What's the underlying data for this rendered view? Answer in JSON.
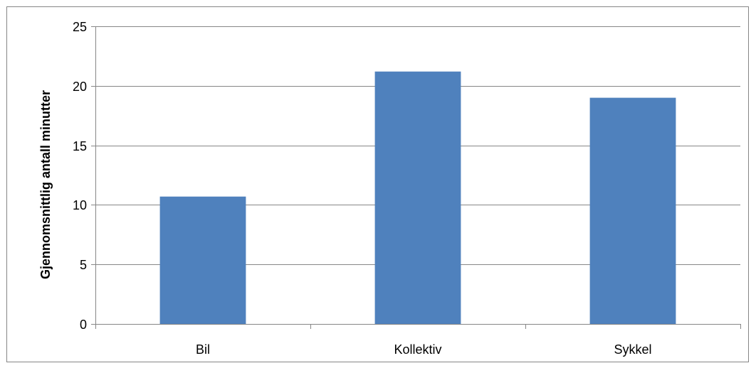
{
  "chart_data": {
    "type": "bar",
    "title": "",
    "xlabel": "",
    "ylabel": "Gjennomsnittlig antall minutter",
    "categories": [
      "Bil",
      "Kollektiv",
      "Sykkel"
    ],
    "values": [
      10.7,
      21.2,
      19.0
    ],
    "ylim": [
      0,
      25
    ],
    "yticks": [
      0,
      5,
      10,
      15,
      20,
      25
    ],
    "grid": true,
    "legend": "none",
    "colors": {
      "bar": "#4F81BD",
      "grid": "#868686",
      "axis": "#868686",
      "frame": "#868686"
    }
  }
}
